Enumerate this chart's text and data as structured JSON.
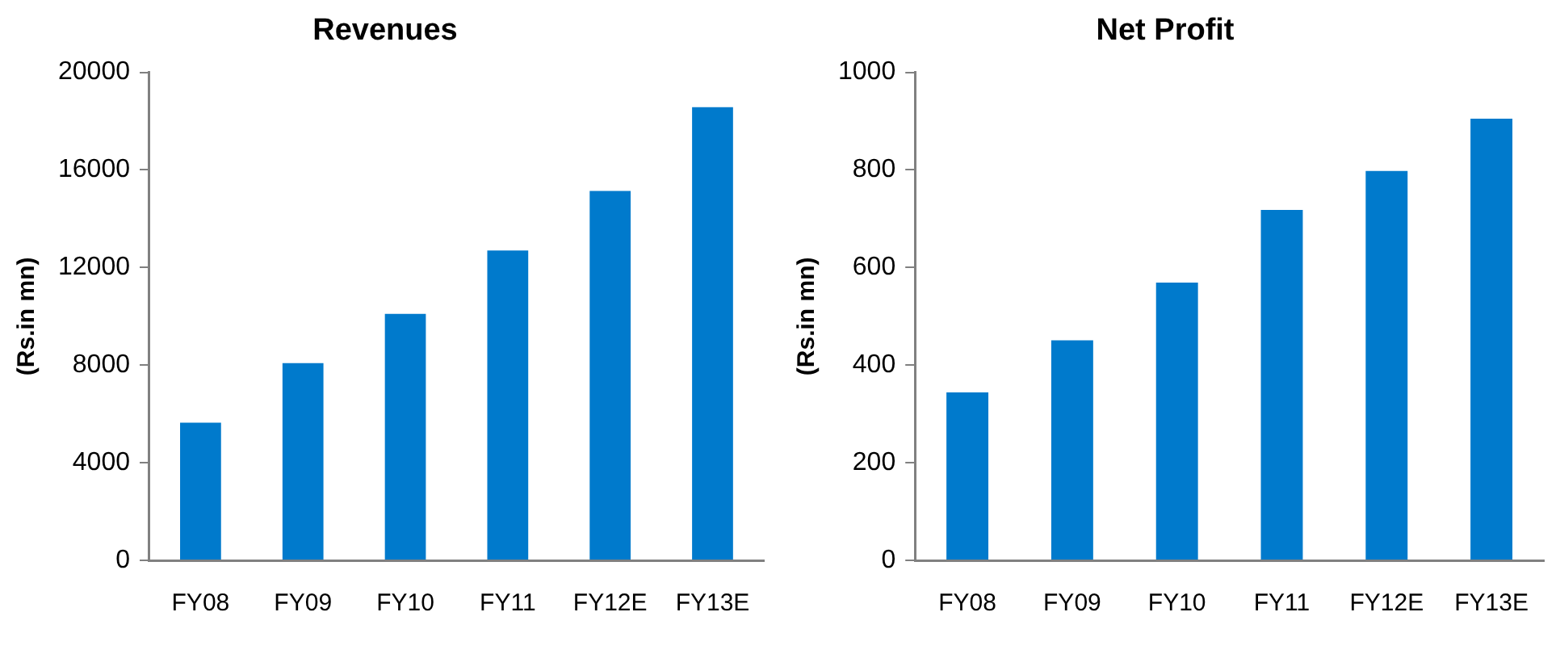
{
  "chart_data": [
    {
      "type": "bar",
      "title": "Revenues",
      "ylabel": "(Rs.in mn)",
      "categories": [
        "FY08",
        "FY09",
        "FY10",
        "FY11",
        "FY12E",
        "FY13E"
      ],
      "values": [
        5640,
        8080,
        10100,
        12700,
        15140,
        18570
      ],
      "color": "#007acc",
      "ylim": [
        0,
        20000
      ],
      "yticks": [
        0,
        4000,
        8000,
        12000,
        16000,
        20000
      ],
      "grid": false,
      "legend": false
    },
    {
      "type": "bar",
      "title": "Net Profit",
      "ylabel": "(Rs.in mn)",
      "categories": [
        "FY08",
        "FY09",
        "FY10",
        "FY11",
        "FY12E",
        "FY13E"
      ],
      "values": [
        344,
        451,
        569,
        718,
        798,
        905
      ],
      "color": "#007acc",
      "ylim": [
        0,
        1000
      ],
      "yticks": [
        0,
        200,
        400,
        600,
        800,
        1000
      ],
      "grid": false,
      "legend": false
    }
  ]
}
